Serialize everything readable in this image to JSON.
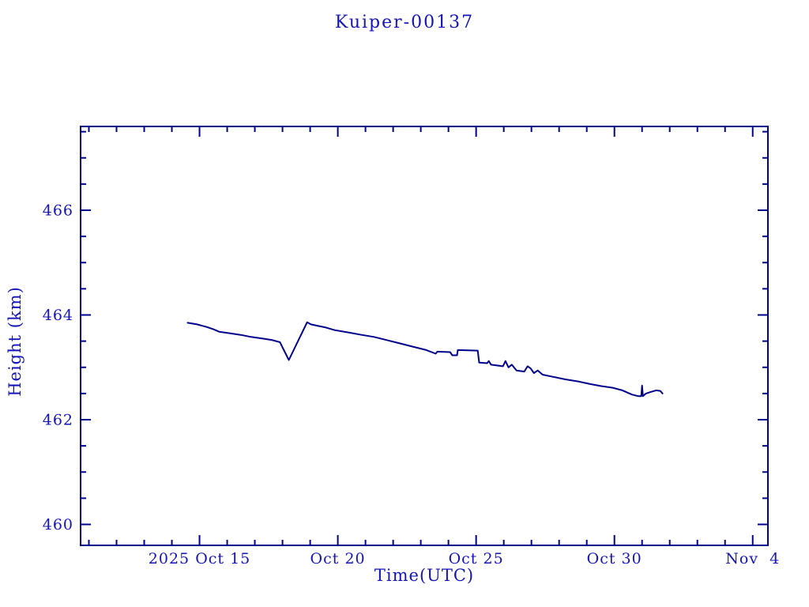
{
  "figure": {
    "background": "#ffffff",
    "text_color": "#1414b8",
    "frame_color": "#00008b",
    "line_color": "#00008b"
  },
  "chart_data": {
    "type": "line",
    "title": "Kuiper-00137",
    "xlabel": "Time(UTC)",
    "ylabel": "Height (km)",
    "grid": false,
    "legend": null,
    "x_unit": "day of October 2025 (Nov 4 = 35)",
    "xlim_days": [
      10.7,
      35.55
    ],
    "ylim": [
      459.6,
      467.6
    ],
    "x_major_ticks": [
      {
        "day": 15,
        "label": "2025 Oct 15"
      },
      {
        "day": 20,
        "label": "Oct 20"
      },
      {
        "day": 25,
        "label": "Oct 25"
      },
      {
        "day": 30,
        "label": "Oct 30"
      },
      {
        "day": 35,
        "label": "Nov  4"
      }
    ],
    "x_minor_step_days": 1,
    "y_major_ticks": [
      460,
      462,
      464,
      466
    ],
    "y_minor_step": 0.5,
    "series": [
      {
        "name": "Kuiper-00137 height",
        "color": "#00008b",
        "points": [
          [
            14.57,
            463.85
          ],
          [
            14.91,
            463.82
          ],
          [
            15.26,
            463.77
          ],
          [
            15.49,
            463.73
          ],
          [
            15.71,
            463.68
          ],
          [
            16.11,
            463.65
          ],
          [
            16.49,
            463.62
          ],
          [
            16.86,
            463.58
          ],
          [
            17.26,
            463.55
          ],
          [
            17.63,
            463.52
          ],
          [
            17.91,
            463.48
          ],
          [
            18.0,
            463.38
          ],
          [
            18.23,
            463.14
          ],
          [
            18.89,
            463.86
          ],
          [
            19.03,
            463.82
          ],
          [
            19.29,
            463.79
          ],
          [
            19.57,
            463.76
          ],
          [
            19.89,
            463.71
          ],
          [
            20.34,
            463.67
          ],
          [
            20.86,
            463.62
          ],
          [
            21.31,
            463.58
          ],
          [
            21.77,
            463.52
          ],
          [
            22.29,
            463.45
          ],
          [
            22.74,
            463.39
          ],
          [
            23.2,
            463.33
          ],
          [
            23.54,
            463.26
          ],
          [
            23.6,
            463.3
          ],
          [
            24.06,
            463.29
          ],
          [
            24.14,
            463.23
          ],
          [
            24.31,
            463.23
          ],
          [
            24.34,
            463.33
          ],
          [
            25.06,
            463.32
          ],
          [
            25.11,
            463.09
          ],
          [
            25.4,
            463.08
          ],
          [
            25.46,
            463.12
          ],
          [
            25.54,
            463.05
          ],
          [
            25.97,
            463.02
          ],
          [
            26.06,
            463.12
          ],
          [
            26.17,
            463.0
          ],
          [
            26.29,
            463.05
          ],
          [
            26.46,
            462.94
          ],
          [
            26.74,
            462.92
          ],
          [
            26.86,
            463.02
          ],
          [
            26.97,
            462.98
          ],
          [
            27.09,
            462.89
          ],
          [
            27.23,
            462.94
          ],
          [
            27.4,
            462.86
          ],
          [
            27.77,
            462.82
          ],
          [
            28.23,
            462.77
          ],
          [
            28.69,
            462.73
          ],
          [
            29.14,
            462.68
          ],
          [
            29.54,
            462.64
          ],
          [
            29.94,
            462.61
          ],
          [
            30.29,
            462.56
          ],
          [
            30.63,
            462.48
          ],
          [
            30.86,
            462.45
          ],
          [
            30.97,
            462.45
          ],
          [
            31.0,
            462.65
          ],
          [
            31.03,
            462.45
          ],
          [
            31.14,
            462.5
          ],
          [
            31.31,
            462.53
          ],
          [
            31.51,
            462.56
          ],
          [
            31.66,
            462.55
          ],
          [
            31.74,
            462.5
          ]
        ]
      }
    ]
  }
}
